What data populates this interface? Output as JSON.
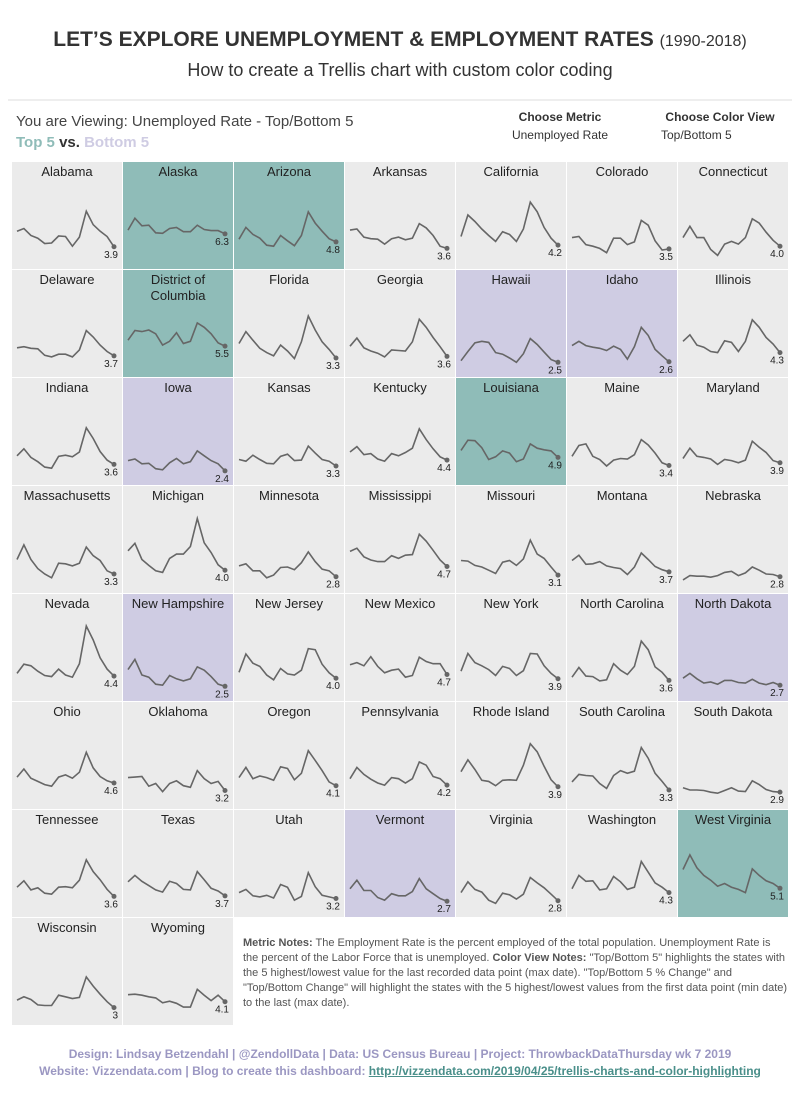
{
  "header": {
    "title": "LET’S EXPLORE UNEMPLOYMENT & EMPLOYMENT RATES",
    "title_years": "(1990-2018)",
    "subtitle": "How to create a Trellis chart with custom color coding"
  },
  "viewing": {
    "text": "You are Viewing: Unemployed Rate - Top/Bottom 5",
    "top_label": "Top 5",
    "vs_label": "vs.",
    "bottom_label": "Bottom 5"
  },
  "controls": [
    {
      "label": "Choose Metric",
      "value": "Unemployed Rate"
    },
    {
      "label": "Choose Color View",
      "value": "Top/Bottom 5"
    }
  ],
  "chart_data": {
    "type": "trellis-line",
    "ylim": [
      2,
      15
    ],
    "line_color": "#666666",
    "panel_color": "#ebebeb",
    "top_color": "#8fbcb8",
    "bottom_color": "#cfcce3",
    "text_color": "#333333",
    "panels": [
      {
        "name": "Alabama",
        "values": [
          6.8,
          7.3,
          6,
          5.5,
          4.5,
          4.6,
          5.9,
          5.8,
          4,
          5.7,
          10.5,
          8,
          6.8,
          5.8,
          3.9
        ]
      },
      {
        "name": "Alaska",
        "color": "#8fbcb8",
        "values": [
          7,
          9.2,
          7.8,
          7.9,
          6.5,
          6.4,
          7.3,
          7.5,
          6.7,
          6.7,
          7.9,
          7.1,
          6.9,
          6.9,
          6.3
        ]
      },
      {
        "name": "Arizona",
        "color": "#8fbcb8",
        "values": [
          5.3,
          7.5,
          6.2,
          5.5,
          4.2,
          4,
          6,
          5,
          4.1,
          6,
          10.4,
          8.3,
          6.8,
          5.4,
          4.8
        ]
      },
      {
        "name": "Arkansas",
        "values": [
          7,
          7.2,
          5.7,
          5.4,
          5.3,
          4.4,
          5.4,
          5.7,
          5.2,
          5.5,
          8.2,
          7.4,
          6,
          4,
          3.6
        ]
      },
      {
        "name": "California",
        "values": [
          5.8,
          9.8,
          8.6,
          7.2,
          6,
          4.9,
          6.7,
          6.2,
          4.9,
          7.2,
          12.2,
          10.4,
          7.5,
          5.5,
          4.2
        ]
      },
      {
        "name": "Colorado",
        "values": [
          5.6,
          5.8,
          4.3,
          4,
          3.6,
          2.8,
          5.5,
          5.5,
          4.3,
          4.8,
          8.8,
          7.9,
          5,
          3.3,
          3.5
        ]
      },
      {
        "name": "Connecticut",
        "values": [
          5.6,
          7.7,
          5.6,
          5.6,
          3.4,
          2.3,
          4.4,
          4.9,
          4.4,
          5.6,
          9.1,
          8.3,
          6.6,
          5.1,
          4
        ],
        "value_labels": [
          null,
          null,
          null,
          null,
          null,
          null,
          null,
          null,
          null,
          null,
          null,
          null,
          null,
          null,
          "4.0"
        ]
      },
      {
        "name": "Delaware",
        "values": [
          5.2,
          5.4,
          5.1,
          5,
          3.8,
          3.5,
          4,
          4,
          3.5,
          4.8,
          8.4,
          7.2,
          5.7,
          4.5,
          3.7
        ]
      },
      {
        "name": "District of Columbia",
        "color": "#8fbcb8",
        "values": [
          6.6,
          8.4,
          8.2,
          8.5,
          7.8,
          5.7,
          6.4,
          8,
          6,
          6.4,
          9.8,
          9,
          7.8,
          6.1,
          5.5
        ]
      },
      {
        "name": "Florida",
        "values": [
          6,
          8.2,
          6.6,
          5.1,
          4.3,
          3.7,
          5.7,
          4.6,
          3.2,
          6.3,
          11.1,
          8.5,
          6.3,
          4.9,
          3.3
        ]
      },
      {
        "name": "Georgia",
        "values": [
          5.5,
          7,
          5.2,
          4.6,
          4.2,
          3.5,
          4.8,
          4.7,
          4.6,
          6.3,
          10.5,
          9,
          7.1,
          5.4,
          3.6
        ]
      },
      {
        "name": "Hawaii",
        "color": "#cfcce3",
        "values": [
          2.8,
          4.5,
          6.1,
          6.4,
          6.2,
          4.3,
          4,
          3.3,
          2.5,
          4.1,
          6.9,
          5.8,
          4.4,
          3,
          2.5
        ]
      },
      {
        "name": "Idaho",
        "color": "#cfcce3",
        "values": [
          5.6,
          6.4,
          5.6,
          5.3,
          5.1,
          4.7,
          5.5,
          4.9,
          3.1,
          5.4,
          9,
          7.5,
          4.9,
          3.7,
          2.6
        ]
      },
      {
        "name": "Illinois",
        "values": [
          6.4,
          7.6,
          5.7,
          5.3,
          4.5,
          4.3,
          6.5,
          6.2,
          4.5,
          6.4,
          10.4,
          9,
          7.1,
          5.9,
          4.3
        ]
      },
      {
        "name": "Indiana",
        "values": [
          5.2,
          6.5,
          4.9,
          4.1,
          3.1,
          2.9,
          5.1,
          5.3,
          5,
          5.9,
          10.4,
          8.4,
          6,
          4.4,
          3.6
        ]
      },
      {
        "name": "Iowa",
        "color": "#cfcce3",
        "values": [
          4.3,
          4.6,
          3.7,
          3.8,
          2.8,
          2.6,
          3.9,
          4.7,
          3.7,
          4.1,
          6.1,
          5.2,
          4.3,
          3.7,
          2.4
        ]
      },
      {
        "name": "Kansas",
        "values": [
          4.5,
          4.2,
          5.3,
          4.5,
          3.8,
          3.7,
          5.1,
          5.5,
          4.3,
          4.4,
          7,
          5.7,
          4.5,
          4.2,
          3.3
        ]
      },
      {
        "name": "Kentucky",
        "values": [
          5.9,
          6.9,
          5.4,
          5.6,
          4.6,
          4.2,
          5.6,
          5.2,
          5.8,
          6.6,
          10.2,
          8.2,
          6.5,
          5,
          4.4
        ]
      },
      {
        "name": "Louisiana",
        "color": "#8fbcb8",
        "values": [
          6.2,
          8.1,
          8,
          6.7,
          4.5,
          5,
          6.1,
          5.7,
          4.1,
          4.6,
          7.4,
          6.6,
          6.3,
          6.1,
          4.9
        ]
      },
      {
        "name": "Maine",
        "values": [
          5.1,
          7.1,
          7.4,
          5.1,
          4.5,
          3.3,
          4.4,
          4.7,
          4.6,
          5.4,
          8.2,
          7.2,
          5.7,
          3.9,
          3.4
        ]
      },
      {
        "name": "Maryland",
        "values": [
          4.7,
          6.6,
          5.1,
          4.9,
          4.6,
          3.6,
          4.5,
          4.3,
          3.9,
          4.4,
          7.9,
          6.8,
          5.8,
          4.3,
          3.9
        ]
      },
      {
        "name": "Massachusetts",
        "values": [
          6,
          8.7,
          6,
          4.3,
          3.3,
          2.6,
          5.3,
          5.2,
          4.8,
          5.3,
          8.3,
          6.7,
          5.8,
          3.9,
          3.3
        ]
      },
      {
        "name": "Michigan",
        "values": [
          7.6,
          9,
          6,
          4.9,
          3.9,
          3.6,
          6.2,
          7,
          7,
          8.4,
          13.6,
          9.1,
          7.3,
          5,
          4
        ],
        "value_labels": [
          null,
          null,
          null,
          null,
          null,
          null,
          null,
          null,
          null,
          null,
          null,
          null,
          null,
          null,
          "4.0"
        ]
      },
      {
        "name": "Minnesota",
        "values": [
          4.8,
          5.2,
          3.9,
          3.9,
          2.6,
          3.1,
          4.5,
          4.6,
          4.1,
          5.4,
          7.4,
          5.6,
          4.2,
          3.9,
          2.8
        ]
      },
      {
        "name": "Mississippi",
        "values": [
          7.5,
          8.1,
          6.5,
          5.9,
          5.6,
          5.6,
          6.7,
          6.2,
          6.8,
          6.9,
          10.7,
          9.4,
          7.7,
          5.9,
          4.7
        ]
      },
      {
        "name": "Missouri",
        "values": [
          5.8,
          5.7,
          4.9,
          4.6,
          4,
          3.4,
          5.5,
          5.8,
          4.9,
          6.1,
          9.6,
          7,
          6.2,
          4.6,
          3.1
        ]
      },
      {
        "name": "Montana",
        "values": [
          5.8,
          6.8,
          5.1,
          5.2,
          5.6,
          4.8,
          4.5,
          4.3,
          3.2,
          4.6,
          7.2,
          6,
          4.7,
          4.1,
          3.7
        ]
      },
      {
        "name": "Nebraska",
        "values": [
          2.2,
          3,
          2.9,
          2.9,
          2.7,
          3,
          3.6,
          3.8,
          3,
          3.5,
          4.6,
          4,
          3.3,
          3.2,
          2.8
        ]
      },
      {
        "name": "Nevada",
        "values": [
          4.9,
          6.6,
          6.3,
          5.3,
          4.5,
          4.3,
          5.7,
          4.6,
          4.2,
          6.7,
          13.7,
          11.1,
          7.8,
          5.7,
          4.4
        ]
      },
      {
        "name": "New Hampshire",
        "color": "#cfcce3",
        "values": [
          5.6,
          7.5,
          4.6,
          4.2,
          2.9,
          2.7,
          4.5,
          3.9,
          3.5,
          3.9,
          6.1,
          5.5,
          4.3,
          2.9,
          2.5
        ]
      },
      {
        "name": "New Jersey",
        "values": [
          5.1,
          8.5,
          6.8,
          6.2,
          4.6,
          3.7,
          5.8,
          4.8,
          4.6,
          5.5,
          9.5,
          9.3,
          6.6,
          5,
          4
        ],
        "value_labels": [
          null,
          null,
          null,
          null,
          null,
          null,
          null,
          null,
          null,
          null,
          null,
          null,
          null,
          null,
          "4.0"
        ]
      },
      {
        "name": "New Mexico",
        "values": [
          6.5,
          6.9,
          6.3,
          8,
          6.2,
          5,
          5.5,
          5.7,
          4.2,
          4.5,
          7.9,
          7.1,
          6.7,
          6.7,
          4.7
        ]
      },
      {
        "name": "New York",
        "values": [
          5.3,
          8.6,
          6.9,
          6.3,
          5.6,
          4.5,
          6.2,
          5.8,
          4.5,
          5.4,
          8.6,
          8.5,
          6.3,
          4.9,
          3.9
        ]
      },
      {
        "name": "North Carolina",
        "values": [
          4.2,
          6,
          4.4,
          4.3,
          3.5,
          3.7,
          6.7,
          5.5,
          4.7,
          6.2,
          10.9,
          9.3,
          6.1,
          5.1,
          3.6
        ]
      },
      {
        "name": "North Dakota",
        "color": "#cfcce3",
        "values": [
          4,
          4.9,
          3.9,
          3.1,
          3.3,
          2.9,
          3.6,
          3.6,
          3.2,
          3.1,
          3.8,
          3.1,
          2.8,
          3.2,
          2.7
        ]
      },
      {
        "name": "Ohio",
        "values": [
          5.7,
          7.2,
          5.5,
          4.9,
          4.3,
          4,
          5.7,
          6.1,
          5.5,
          6.6,
          10.3,
          7.4,
          5.8,
          5,
          4.6
        ]
      },
      {
        "name": "Oklahoma",
        "values": [
          5.6,
          5.7,
          5.8,
          4,
          4.5,
          3,
          4.5,
          5,
          4.1,
          3.8,
          6.9,
          5.4,
          4.5,
          4.9,
          3.2
        ]
      },
      {
        "name": "Oregon",
        "values": [
          5.6,
          7.5,
          5.4,
          5.9,
          5.6,
          5.1,
          7.6,
          7.3,
          5.2,
          6.4,
          10.6,
          8.8,
          6.9,
          4.8,
          4.1
        ]
      },
      {
        "name": "Pennsylvania",
        "values": [
          5.4,
          7.5,
          6.2,
          5.3,
          4.6,
          4.2,
          5.6,
          5.4,
          4.6,
          5.4,
          8.5,
          7.9,
          5.8,
          5.4,
          4.2
        ]
      },
      {
        "name": "Rhode Island",
        "values": [
          6.7,
          8.9,
          7.1,
          5.1,
          4.9,
          4.1,
          5.1,
          5.2,
          5.1,
          7.9,
          11.9,
          10.4,
          7.7,
          5.2,
          3.9
        ]
      },
      {
        "name": "South Carolina",
        "values": [
          4.8,
          6.2,
          6,
          5.9,
          4.5,
          3.6,
          6,
          6.9,
          6.4,
          6.8,
          11.2,
          9.2,
          6.4,
          4.9,
          3.3
        ]
      },
      {
        "name": "South Dakota",
        "values": [
          3.7,
          3.3,
          3.3,
          3.2,
          2.9,
          2.7,
          3.2,
          3.7,
          3.1,
          3,
          5,
          4.3,
          3.4,
          3,
          2.9
        ]
      },
      {
        "name": "Tennessee",
        "values": [
          5.3,
          6.5,
          4.8,
          5.2,
          4.2,
          4,
          5.3,
          5.4,
          5.2,
          6.6,
          10.4,
          8.2,
          6.7,
          4.9,
          3.6
        ]
      },
      {
        "name": "Texas",
        "values": [
          6.3,
          7.5,
          6.4,
          5.6,
          4.8,
          4.4,
          6.4,
          6,
          4.9,
          4.8,
          8.2,
          6.7,
          5.1,
          4.6,
          3.7
        ]
      },
      {
        "name": "Utah",
        "values": [
          4.3,
          4.9,
          3.7,
          3.5,
          3.8,
          3.3,
          5.8,
          5.3,
          2.9,
          3.6,
          8,
          5.4,
          3.8,
          3.5,
          3.2
        ]
      },
      {
        "name": "Vermont",
        "color": "#cfcce3",
        "values": [
          5,
          6.6,
          4.7,
          4.7,
          3.4,
          2.9,
          4.1,
          3.7,
          3.7,
          4.5,
          6.9,
          5,
          4.1,
          3.2,
          2.7
        ]
      },
      {
        "name": "Virginia",
        "values": [
          4.3,
          6.3,
          4.9,
          4.4,
          2.9,
          2.3,
          4.2,
          3.9,
          3.1,
          4,
          7.1,
          6.1,
          5.2,
          4,
          2.8
        ]
      },
      {
        "name": "Washington",
        "values": [
          5,
          7.5,
          6.4,
          6.5,
          4.8,
          5,
          7.3,
          6.3,
          4.9,
          5.3,
          10.1,
          8.1,
          6.1,
          5.3,
          4.3
        ]
      },
      {
        "name": "West Virginia",
        "color": "#8fbcb8",
        "values": [
          8.6,
          11.3,
          8.9,
          7.5,
          6.6,
          5.5,
          6,
          5.3,
          4.9,
          4.3,
          8.7,
          7.5,
          6.5,
          6,
          5.1
        ]
      },
      {
        "name": "Wisconsin",
        "values": [
          4.4,
          5,
          4.5,
          3.5,
          3.4,
          3.4,
          5.3,
          5,
          4.7,
          4.9,
          8.7,
          7,
          5.5,
          4.1,
          3
        ]
      },
      {
        "name": "Wyoming",
        "values": [
          5.4,
          5.5,
          5.3,
          5,
          4.8,
          3.9,
          4.2,
          3.8,
          3.1,
          3.1,
          6.4,
          5.3,
          4.3,
          5.3,
          4.1
        ]
      }
    ]
  },
  "notes": [
    {
      "label": "Metric Notes:",
      "text": "The Employment Rate is the percent employed of the total population. Unemployment Rate is the percent of the Labor Force that is unemployed."
    },
    {
      "label": "Color View Notes:",
      "text": "\"Top/Bottom 5\" highlights the states with the 5 highest/lowest value for the last recorded data point (max date). \"Top/Bottom 5 % Change\" and \"Top/Bottom Change\" will highlight the states with the 5 highest/lowest values from the first data point (min date) to the last (max date)."
    }
  ],
  "footer": {
    "line1": "Design: Lindsay Betzendahl  |  @ZendollData  |  Data: US Census Bureau  |  Project: ThrowbackDataThursday wk 7 2019",
    "line2": "Website: Vizzendata.com  |  Blog to create this dashboard:",
    "link": "http://vizzendata.com/2019/04/25/trellis-charts-and-color-highlighting"
  }
}
